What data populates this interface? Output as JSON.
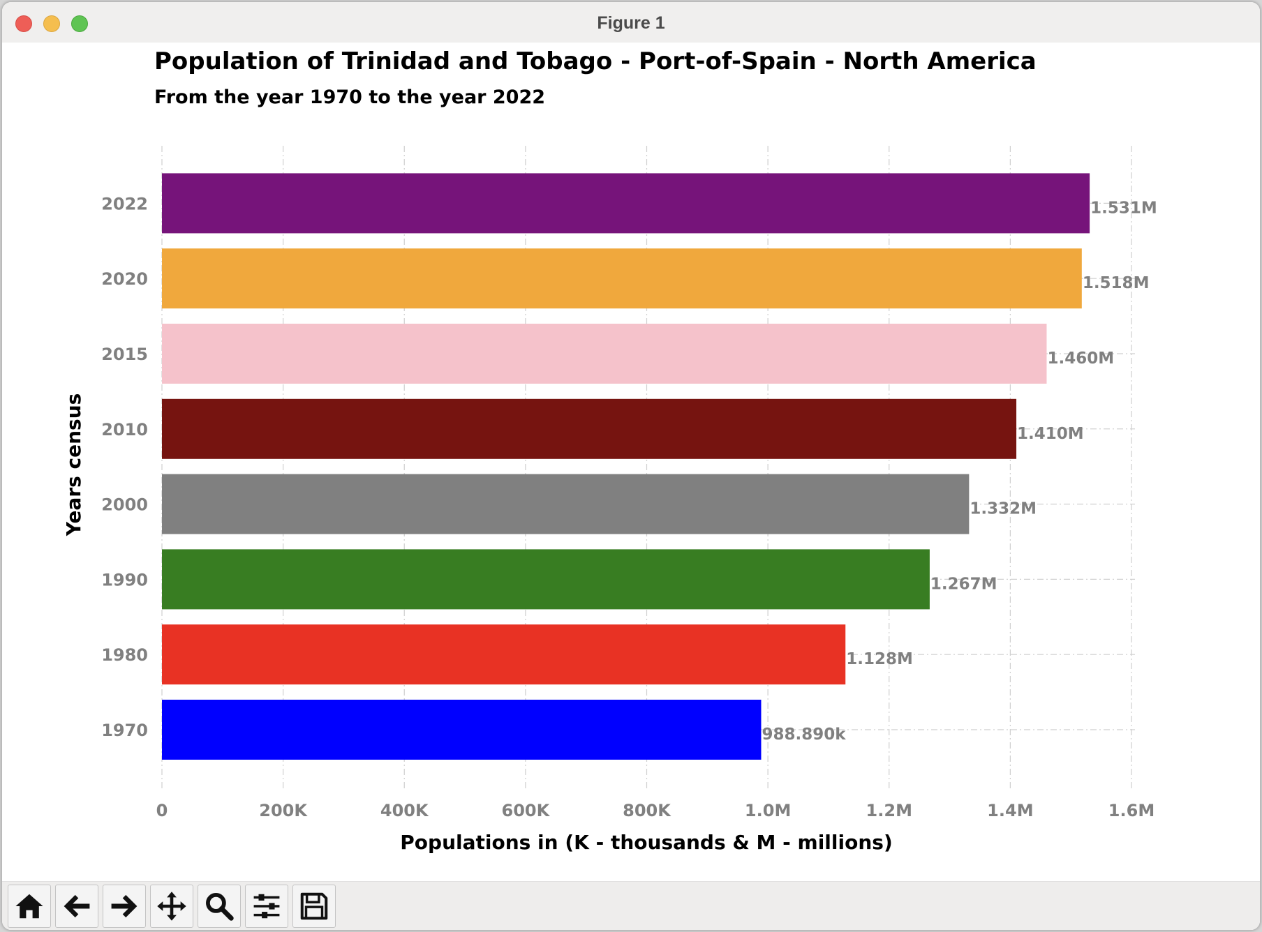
{
  "window": {
    "title": "Figure 1"
  },
  "toolbar": {
    "buttons": [
      {
        "icon": "home-icon"
      },
      {
        "icon": "back-arrow-icon"
      },
      {
        "icon": "forward-arrow-icon"
      },
      {
        "icon": "pan-move-icon"
      },
      {
        "icon": "zoom-magnifier-icon"
      },
      {
        "icon": "configure-subplots-icon"
      },
      {
        "icon": "save-disk-icon"
      }
    ]
  },
  "chart_data": {
    "type": "bar",
    "orientation": "horizontal",
    "title": "Population of Trinidad and Tobago - Port-of-Spain - North America",
    "subtitle": "From the year 1970 to the year 2022",
    "xlabel": "Populations in (K - thousands & M - millions)",
    "ylabel": "Years census",
    "categories": [
      "1970",
      "1980",
      "1990",
      "2000",
      "2010",
      "2015",
      "2020",
      "2022"
    ],
    "values": [
      988890,
      1128000,
      1267000,
      1332000,
      1410000,
      1460000,
      1518000,
      1531000
    ],
    "data_labels": [
      "988.890k",
      "1.128M",
      "1.267M",
      "1.332M",
      "1.410M",
      "1.460M",
      "1.518M",
      "1.531M"
    ],
    "colors": [
      "#0000ff",
      "#e83224",
      "#387d22",
      "#808080",
      "#761410",
      "#f5c2cb",
      "#f0a83d",
      "#76147a"
    ],
    "xlim": [
      0,
      1600000
    ],
    "xticks": [
      0,
      200000,
      400000,
      600000,
      800000,
      1000000,
      1200000,
      1400000,
      1600000
    ],
    "xtick_labels": [
      "0",
      "200K",
      "400K",
      "600K",
      "800K",
      "1.0M",
      "1.2M",
      "1.4M",
      "1.6M"
    ],
    "grid": true,
    "grid_style": "dash-dot",
    "label_color": "#808080"
  }
}
